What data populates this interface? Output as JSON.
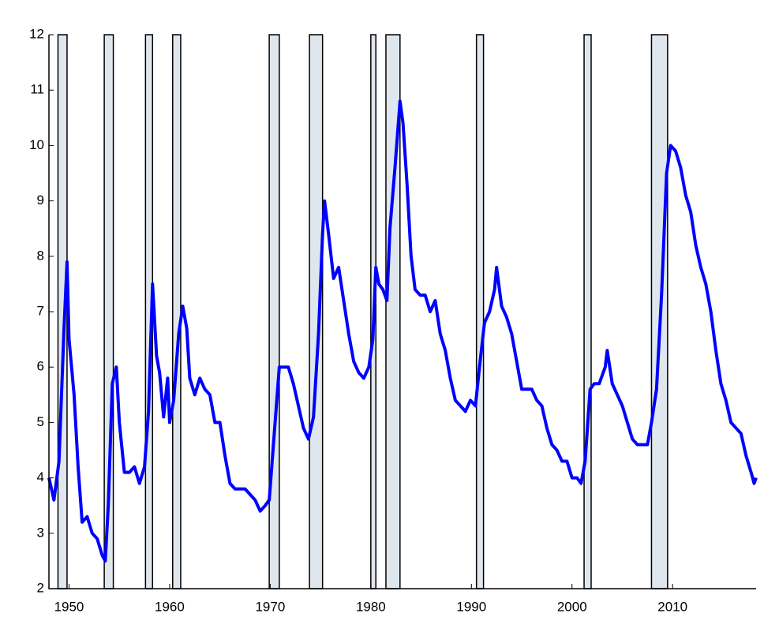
{
  "chart_data": {
    "type": "line",
    "x": [
      1948.0,
      1948.5,
      1949.0,
      1949.5,
      1949.8,
      1950.0,
      1950.5,
      1950.9,
      1951.3,
      1951.8,
      1952.3,
      1952.8,
      1953.3,
      1953.6,
      1953.9,
      1954.3,
      1954.7,
      1955.0,
      1955.5,
      1956.0,
      1956.5,
      1957.0,
      1957.5,
      1957.9,
      1958.3,
      1958.7,
      1959.0,
      1959.4,
      1959.8,
      1960.0,
      1960.4,
      1960.9,
      1961.3,
      1961.7,
      1962.0,
      1962.5,
      1963.0,
      1963.5,
      1964.0,
      1964.5,
      1965.0,
      1965.5,
      1966.0,
      1966.5,
      1967.0,
      1967.5,
      1968.0,
      1968.5,
      1969.0,
      1969.5,
      1969.9,
      1970.4,
      1970.9,
      1971.3,
      1971.8,
      1972.3,
      1972.8,
      1973.3,
      1973.8,
      1974.3,
      1974.8,
      1975.2,
      1975.4,
      1975.8,
      1976.3,
      1976.8,
      1977.3,
      1977.8,
      1978.3,
      1978.8,
      1979.3,
      1979.8,
      1980.2,
      1980.5,
      1980.8,
      1981.2,
      1981.6,
      1981.9,
      1982.4,
      1982.9,
      1983.2,
      1983.6,
      1984.0,
      1984.4,
      1984.9,
      1985.4,
      1985.9,
      1986.4,
      1986.9,
      1987.4,
      1987.9,
      1988.4,
      1988.9,
      1989.4,
      1989.9,
      1990.4,
      1990.8,
      1991.3,
      1991.8,
      1992.3,
      1992.5,
      1993.0,
      1993.5,
      1994.0,
      1994.5,
      1995.0,
      1995.5,
      1996.0,
      1996.5,
      1997.0,
      1997.5,
      1998.0,
      1998.5,
      1999.0,
      1999.5,
      2000.0,
      2000.5,
      2000.9,
      2001.3,
      2001.8,
      2002.2,
      2002.7,
      2003.3,
      2003.5,
      2004.0,
      2004.5,
      2005.0,
      2005.5,
      2006.0,
      2006.5,
      2007.0,
      2007.5,
      2007.9,
      2008.4,
      2008.9,
      2009.4,
      2009.8,
      2010.3,
      2010.8,
      2011.3,
      2011.8,
      2012.3,
      2012.8,
      2013.3,
      2013.8,
      2014.3,
      2014.8,
      2015.3,
      2015.8,
      2016.3,
      2016.8,
      2017.3,
      2017.8,
      2018.1,
      2018.3
    ],
    "series": [
      {
        "color": "#0000ff",
        "values": [
          4.0,
          3.6,
          4.3,
          6.7,
          7.9,
          6.5,
          5.5,
          4.2,
          3.2,
          3.3,
          3.0,
          2.9,
          2.6,
          2.5,
          3.5,
          5.7,
          6.0,
          5.0,
          4.1,
          4.1,
          4.2,
          3.9,
          4.2,
          5.2,
          7.5,
          6.2,
          5.9,
          5.1,
          5.8,
          5.0,
          5.4,
          6.6,
          7.1,
          6.7,
          5.8,
          5.5,
          5.8,
          5.6,
          5.5,
          5.0,
          5.0,
          4.4,
          3.9,
          3.8,
          3.8,
          3.8,
          3.7,
          3.6,
          3.4,
          3.5,
          3.6,
          4.8,
          6.0,
          6.0,
          6.0,
          5.7,
          5.3,
          4.9,
          4.7,
          5.1,
          6.6,
          8.4,
          9.0,
          8.4,
          7.6,
          7.8,
          7.2,
          6.6,
          6.1,
          5.9,
          5.8,
          6.0,
          6.5,
          7.8,
          7.5,
          7.4,
          7.2,
          8.5,
          9.6,
          10.8,
          10.4,
          9.3,
          8.0,
          7.4,
          7.3,
          7.3,
          7.0,
          7.2,
          6.6,
          6.3,
          5.8,
          5.4,
          5.3,
          5.2,
          5.4,
          5.3,
          6.0,
          6.8,
          7.0,
          7.4,
          7.8,
          7.1,
          6.9,
          6.6,
          6.1,
          5.6,
          5.6,
          5.6,
          5.4,
          5.3,
          4.9,
          4.6,
          4.5,
          4.3,
          4.3,
          4.0,
          4.0,
          3.9,
          4.3,
          5.6,
          5.7,
          5.7,
          6.0,
          6.3,
          5.7,
          5.5,
          5.3,
          5.0,
          4.7,
          4.6,
          4.6,
          4.6,
          5.0,
          5.6,
          7.3,
          9.5,
          10.0,
          9.9,
          9.6,
          9.1,
          8.8,
          8.2,
          7.8,
          7.5,
          7.0,
          6.3,
          5.7,
          5.4,
          5.0,
          4.9,
          4.8,
          4.4,
          4.1,
          3.9,
          4.0
        ]
      }
    ],
    "shaded_periods": [
      {
        "start": 1948.9,
        "end": 1949.8
      },
      {
        "start": 1953.5,
        "end": 1954.4
      },
      {
        "start": 1957.6,
        "end": 1958.3
      },
      {
        "start": 1960.3,
        "end": 1961.1
      },
      {
        "start": 1969.9,
        "end": 1970.9
      },
      {
        "start": 1973.9,
        "end": 1975.2
      },
      {
        "start": 1980.0,
        "end": 1980.5
      },
      {
        "start": 1981.5,
        "end": 1982.9
      },
      {
        "start": 1990.5,
        "end": 1991.2
      },
      {
        "start": 2001.2,
        "end": 2001.9
      },
      {
        "start": 2007.9,
        "end": 2009.5
      }
    ],
    "shade_color": "#dfe6ee",
    "xlim": [
      1948,
      2018.3
    ],
    "xticks": [
      1950,
      1960,
      1970,
      1980,
      1990,
      2000,
      2010
    ],
    "ylim": [
      2,
      12
    ],
    "yticks": [
      2,
      3,
      4,
      5,
      6,
      7,
      8,
      9,
      10,
      11,
      12
    ]
  }
}
